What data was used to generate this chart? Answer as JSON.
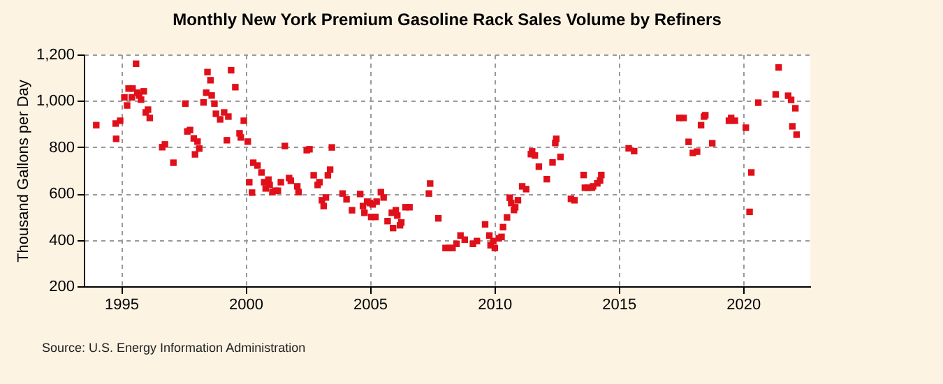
{
  "chart_data": {
    "type": "scatter",
    "title": "Monthly New York Premium Gasoline Rack Sales Volume by Refiners",
    "ylabel": "Thousand Gallons per Day",
    "annotations": [
      "Source: U.S. Energy Information Administration"
    ],
    "xlim": [
      1993.5,
      2022.7
    ],
    "xticks": [
      1995,
      2000,
      2005,
      2010,
      2015,
      2020
    ],
    "ylim": [
      200,
      1200
    ],
    "yticks": [
      200,
      400,
      600,
      800,
      {
        "value": 1000,
        "label": "1,000"
      },
      {
        "value": 1200,
        "label": "1,200"
      }
    ],
    "grid": true,
    "marker": "square",
    "series": [
      {
        "color": "#e0101a",
        "x": [
          1994.0,
          1994.78,
          1994.8,
          1994.96,
          1995.13,
          1995.24,
          1995.3,
          1995.43,
          1995.46,
          1995.6,
          1995.65,
          1995.72,
          1995.8,
          1995.91,
          1995.99,
          1996.08,
          1996.15,
          1996.65,
          1996.76,
          1997.1,
          1997.58,
          1997.66,
          1997.77,
          1997.92,
          1997.97,
          1998.07,
          1998.14,
          1998.31,
          1998.42,
          1998.47,
          1998.59,
          1998.64,
          1998.75,
          1998.81,
          1998.98,
          1999.14,
          1999.25,
          1999.31,
          1999.42,
          1999.59,
          1999.76,
          1999.81,
          1999.93,
          2000.09,
          2000.15,
          2000.26,
          2000.31,
          2000.48,
          2000.64,
          2000.75,
          2000.81,
          2000.92,
          2000.97,
          2001.08,
          2001.2,
          2001.3,
          2001.42,
          2001.58,
          2001.75,
          2001.82,
          2002.08,
          2002.13,
          2002.46,
          2002.57,
          2002.74,
          2002.9,
          2002.97,
          2003.07,
          2003.14,
          2003.23,
          2003.31,
          2003.4,
          2003.47,
          2003.9,
          2004.06,
          2004.28,
          2004.61,
          2004.72,
          2004.78,
          2004.89,
          2005.0,
          2005.05,
          2005.11,
          2005.22,
          2005.27,
          2005.44,
          2005.55,
          2005.71,
          2005.88,
          2005.93,
          2006.04,
          2006.1,
          2006.21,
          2006.26,
          2006.43,
          2006.59,
          2007.37,
          2007.42,
          2007.75,
          2008.04,
          2008.19,
          2008.32,
          2008.48,
          2008.64,
          2008.81,
          2009.14,
          2009.3,
          2009.63,
          2009.8,
          2009.85,
          2009.96,
          2010.02,
          2010.18,
          2010.29,
          2010.35,
          2010.51,
          2010.62,
          2010.68,
          2010.79,
          2010.84,
          2010.95,
          2011.12,
          2011.28,
          2011.47,
          2011.52,
          2011.63,
          2011.79,
          2012.11,
          2012.34,
          2012.45,
          2012.49,
          2012.66,
          2013.08,
          2013.22,
          2013.59,
          2013.64,
          2013.75,
          2013.92,
          2013.97,
          2014.14,
          2014.25,
          2014.3,
          2015.4,
          2015.62,
          2017.44,
          2017.61,
          2017.81,
          2017.98,
          2018.15,
          2018.31,
          2018.43,
          2018.48,
          2018.76,
          2019.43,
          2019.52,
          2019.67,
          2020.11,
          2020.26,
          2020.33,
          2020.61,
          2021.31,
          2021.43,
          2021.81,
          2021.93,
          2021.98,
          2022.1,
          2022.15
        ],
        "values": [
          895,
          902,
          836,
          914,
          1015,
          980,
          1053,
          1015,
          1053,
          1160,
          1035,
          1023,
          1005,
          1041,
          950,
          962,
          926,
          800,
          812,
          733,
          988,
          868,
          874,
          838,
          769,
          824,
          794,
          993,
          1035,
          1124,
          1089,
          1023,
          988,
          944,
          920,
          950,
          830,
          932,
          1132,
          1059,
          860,
          842,
          914,
          824,
          649,
          604,
          733,
          721,
          691,
          649,
          622,
          660,
          637,
          606,
          612,
          612,
          649,
          805,
          667,
          655,
          631,
          606,
          787,
          791,
          679,
          637,
          649,
          571,
          546,
          583,
          679,
          703,
          799,
          600,
          575,
          528,
          598,
          546,
          517,
          565,
          559,
          499,
          553,
          499,
          565,
          606,
          583,
          481,
          517,
          451,
          528,
          505,
          463,
          475,
          541,
          541,
          600,
          643,
          493,
          365,
          365,
          365,
          383,
          419,
          401,
          383,
          395,
          467,
          419,
          377,
          395,
          365,
          407,
          413,
          455,
          497,
          582,
          559,
          529,
          541,
          571,
          631,
          619,
          770,
          782,
          764,
          716,
          662,
          734,
          818,
          836,
          758,
          577,
          571,
          680,
          625,
          625,
          625,
          631,
          644,
          656,
          680,
          795,
          783,
          926,
          926,
          823,
          775,
          781,
          895,
          932,
          938,
          817,
          914,
          926,
          914,
          884,
          521,
          691,
          992,
          1028,
          1144,
          1022,
          1004,
          890,
          968,
          854
        ]
      }
    ]
  }
}
